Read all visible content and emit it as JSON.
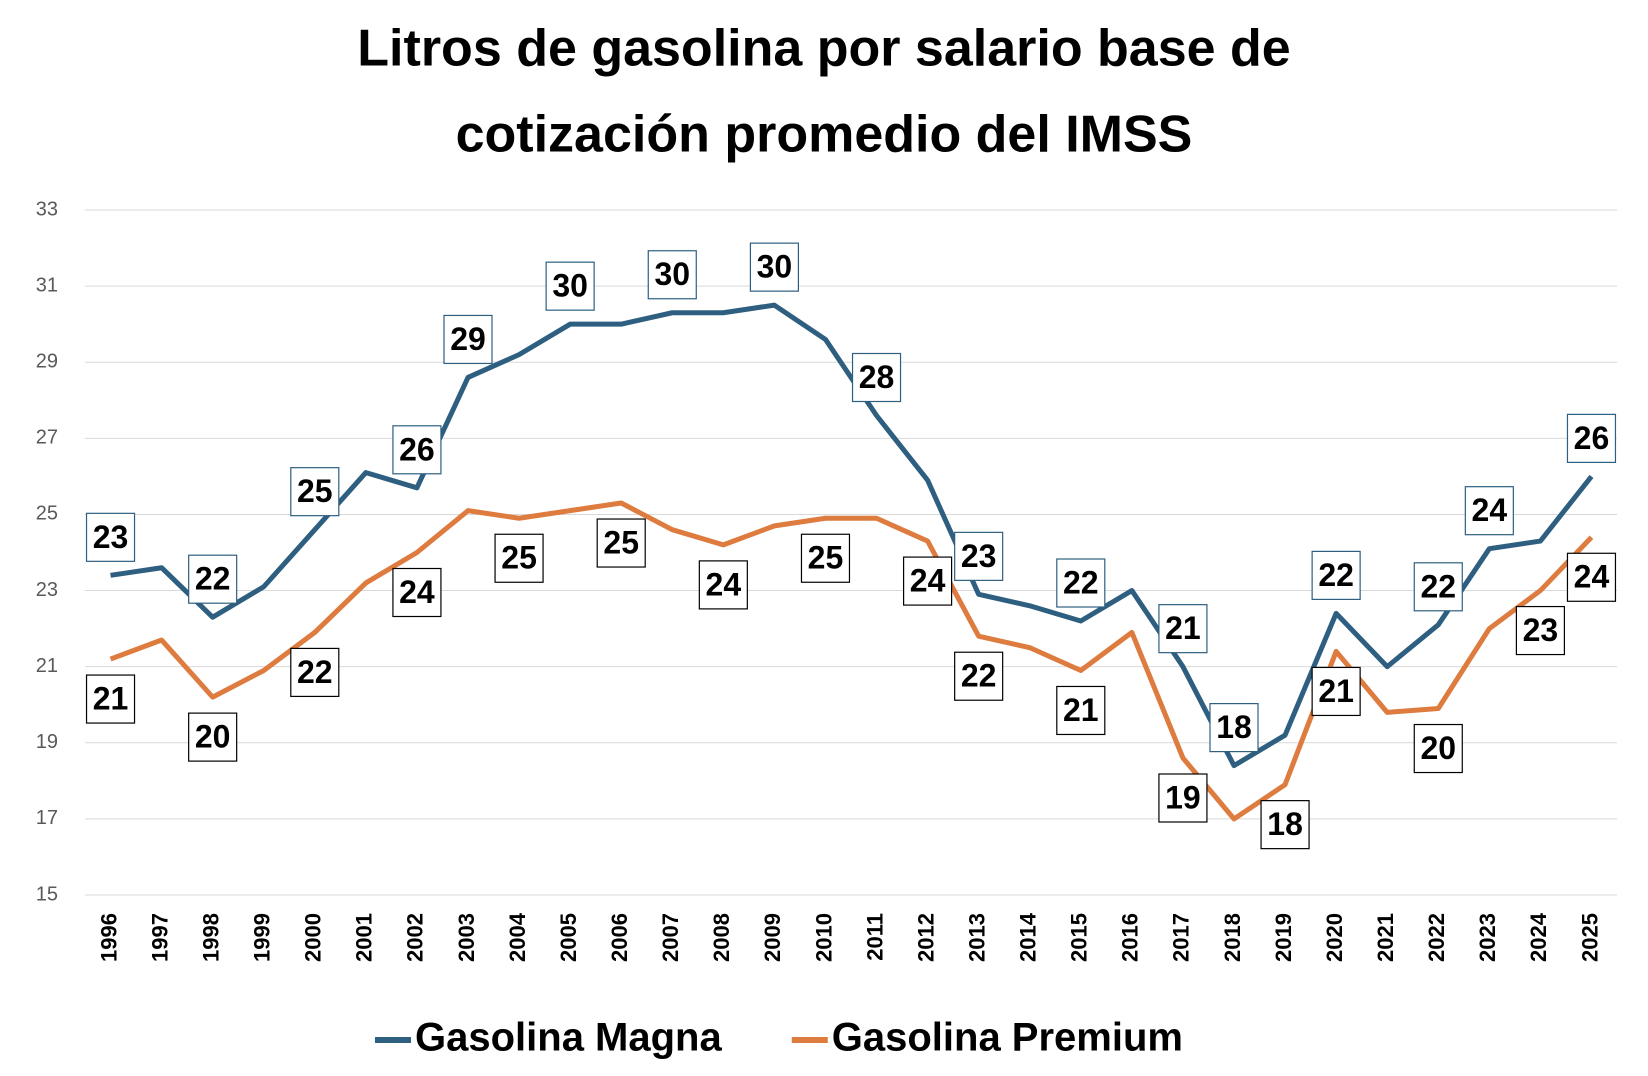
{
  "chart_data": {
    "type": "line",
    "title": [
      "Litros de gasolina  por salario base de",
      "cotización promedio del IMSS"
    ],
    "categories": [
      "1996",
      "1997",
      "1998",
      "1999",
      "2000",
      "2001",
      "2002",
      "2003",
      "2004",
      "2005",
      "2006",
      "2007",
      "2008",
      "2009",
      "2010",
      "2011",
      "2012",
      "2013",
      "2014",
      "2015",
      "2016",
      "2017",
      "2018",
      "2019",
      "2020",
      "2021",
      "2022",
      "2023",
      "2024",
      "2025"
    ],
    "series": [
      {
        "name": "Gasolina Magna",
        "color": "#2e5f80",
        "values": [
          23.4,
          23.6,
          22.3,
          23.1,
          24.6,
          26.1,
          25.7,
          28.6,
          29.2,
          30.0,
          30.0,
          30.3,
          30.3,
          30.5,
          29.6,
          27.6,
          25.9,
          22.9,
          22.6,
          22.2,
          23.0,
          21.0,
          18.4,
          19.2,
          22.4,
          21.0,
          22.1,
          24.1,
          24.3,
          26.0
        ],
        "value_labels": [
          "23",
          null,
          "22",
          null,
          "25",
          null,
          "26",
          "29",
          null,
          "30",
          null,
          "30",
          null,
          "30",
          null,
          "28",
          null,
          "23",
          null,
          "22",
          null,
          "21",
          "18",
          null,
          "22",
          null,
          "22",
          "24",
          null,
          "26"
        ]
      },
      {
        "name": "Gasolina Premium",
        "color": "#de7b3f",
        "values": [
          21.2,
          21.7,
          20.2,
          20.9,
          21.9,
          23.2,
          24.0,
          25.1,
          24.9,
          25.1,
          25.3,
          24.6,
          24.2,
          24.7,
          24.9,
          24.9,
          24.3,
          21.8,
          21.5,
          20.9,
          21.9,
          18.6,
          17.0,
          17.9,
          21.4,
          19.8,
          19.9,
          22.0,
          23.0,
          24.4
        ],
        "value_labels": [
          "21",
          null,
          "20",
          null,
          "22",
          null,
          "24",
          null,
          "25",
          null,
          "25",
          null,
          "24",
          null,
          "25",
          null,
          "24",
          "22",
          null,
          "21",
          null,
          "19",
          null,
          "18",
          "21",
          null,
          "20",
          null,
          "23",
          "24"
        ]
      }
    ],
    "ylim": [
      15,
      33
    ],
    "yticks": [
      15,
      17,
      19,
      21,
      23,
      25,
      27,
      29,
      31,
      33
    ],
    "grid": true
  }
}
